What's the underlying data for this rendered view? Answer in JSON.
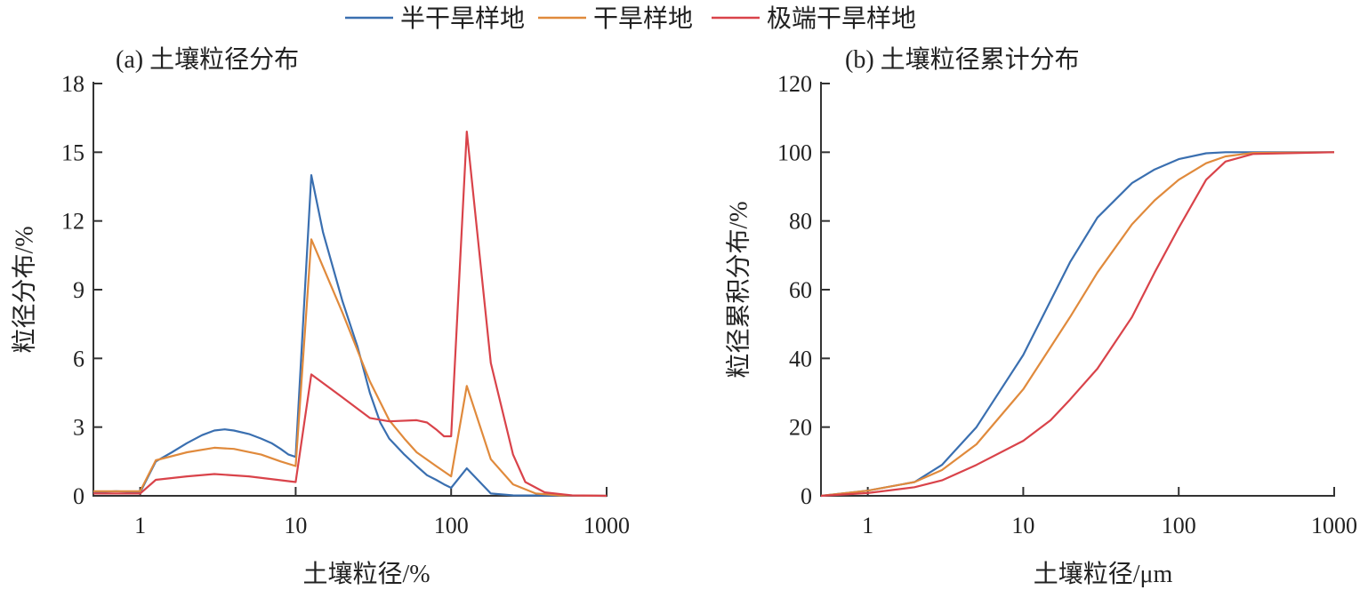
{
  "legend": [
    {
      "name": "半干旱样地",
      "color": "#3a6fb0"
    },
    {
      "name": "干旱样地",
      "color": "#e08a3c"
    },
    {
      "name": "极端干旱样地",
      "color": "#d9434a"
    }
  ],
  "chart_data": [
    {
      "type": "line",
      "title": "(a) 土壤粒径分布",
      "xlabel": "土壤粒径/%",
      "ylabel": "粒径分布/%",
      "xscale": "log",
      "xlim": [
        0.5,
        1000
      ],
      "ylim": [
        0,
        18
      ],
      "xticks": [
        1,
        10,
        100,
        1000
      ],
      "xtick_labels": [
        "1",
        "10",
        "100",
        "1000"
      ],
      "yticks": [
        0,
        3,
        6,
        9,
        12,
        15,
        18
      ],
      "ytick_labels": [
        "0",
        "3",
        "6",
        "9",
        "12",
        "15",
        "18"
      ],
      "series": [
        {
          "name": "半干旱样地",
          "x": [
            0.5,
            0.7,
            1,
            1.26,
            1.6,
            2,
            2.5,
            3,
            3.5,
            4,
            5,
            6,
            7,
            8,
            9,
            10,
            12.6,
            15,
            20,
            25,
            30,
            35,
            40,
            50,
            60,
            70,
            80,
            90,
            100,
            126,
            180,
            250,
            1000
          ],
          "y": [
            0.15,
            0.2,
            0.15,
            1.5,
            1.9,
            2.3,
            2.65,
            2.85,
            2.9,
            2.85,
            2.7,
            2.5,
            2.3,
            2.05,
            1.8,
            1.7,
            14.0,
            11.5,
            8.5,
            6.5,
            4.5,
            3.2,
            2.5,
            1.8,
            1.3,
            0.9,
            0.7,
            0.5,
            0.35,
            1.2,
            0.1,
            0.02,
            0
          ]
        },
        {
          "name": "干旱样地",
          "x": [
            0.5,
            1,
            1.26,
            2,
            3,
            4,
            6,
            8,
            10,
            12.6,
            20,
            30,
            40,
            50,
            60,
            80,
            100,
            126,
            180,
            250,
            350,
            500,
            1000
          ],
          "y": [
            0.2,
            0.2,
            1.55,
            1.9,
            2.1,
            2.05,
            1.8,
            1.5,
            1.3,
            11.2,
            8.0,
            5.0,
            3.3,
            2.5,
            1.9,
            1.3,
            0.85,
            4.8,
            1.6,
            0.5,
            0.1,
            0.02,
            0
          ]
        },
        {
          "name": "极端干旱样地",
          "x": [
            0.5,
            1,
            1.26,
            2,
            3,
            5,
            10,
            12.6,
            20,
            30,
            40,
            60,
            70,
            80,
            90,
            100,
            126,
            180,
            250,
            300,
            400,
            600,
            1000
          ],
          "y": [
            0.1,
            0.1,
            0.7,
            0.85,
            0.95,
            0.85,
            0.6,
            5.3,
            4.3,
            3.4,
            3.25,
            3.3,
            3.2,
            2.9,
            2.6,
            2.6,
            15.9,
            5.8,
            1.8,
            0.6,
            0.15,
            0.02,
            0
          ]
        }
      ]
    },
    {
      "type": "line",
      "title": "(b) 土壤粒径累计分布",
      "xlabel": "土壤粒径/μm",
      "ylabel": "粒径累积分布/%",
      "xscale": "log",
      "xlim": [
        0.5,
        1000
      ],
      "ylim": [
        0,
        120
      ],
      "xticks": [
        1,
        10,
        100,
        1000
      ],
      "xtick_labels": [
        "1",
        "10",
        "100",
        "1000"
      ],
      "yticks": [
        0,
        20,
        40,
        60,
        80,
        100,
        120
      ],
      "ytick_labels": [
        "0",
        "20",
        "40",
        "60",
        "80",
        "100",
        "120"
      ],
      "series": [
        {
          "name": "半干旱样地",
          "x": [
            0.5,
            1,
            2,
            3,
            5,
            10,
            20,
            30,
            50,
            70,
            100,
            150,
            200,
            1000
          ],
          "y": [
            0,
            1.5,
            4,
            9,
            20,
            41,
            68,
            81,
            91,
            95,
            98,
            99.7,
            100,
            100
          ]
        },
        {
          "name": "干旱样地",
          "x": [
            0.5,
            1,
            2,
            3,
            5,
            10,
            20,
            30,
            50,
            70,
            100,
            150,
            200,
            300,
            1000
          ],
          "y": [
            0,
            1.5,
            4,
            7.5,
            15,
            31,
            52,
            65,
            79,
            86,
            92,
            96.8,
            98.8,
            99.8,
            100
          ]
        },
        {
          "name": "极端干旱样地",
          "x": [
            0.5,
            1,
            2,
            3,
            5,
            10,
            15,
            20,
            30,
            50,
            70,
            100,
            150,
            200,
            300,
            1000
          ],
          "y": [
            0,
            0.8,
            2.5,
            4.5,
            9,
            16,
            22,
            28,
            37,
            52,
            65,
            78,
            92,
            97.3,
            99.5,
            100
          ]
        }
      ]
    }
  ]
}
